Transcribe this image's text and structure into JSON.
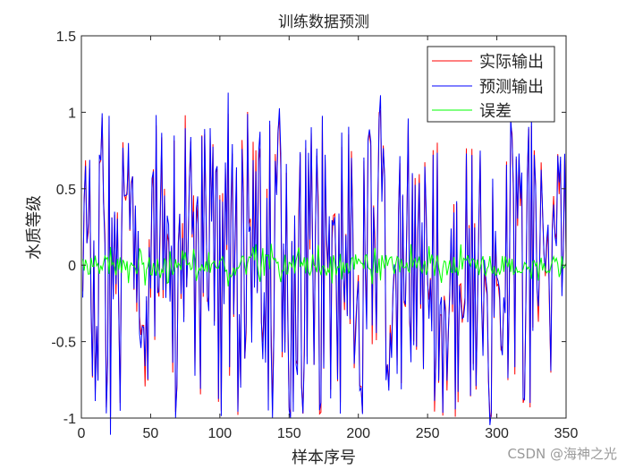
{
  "chart_data": {
    "type": "line",
    "title": "训练数据预测",
    "xlabel": "样本序号",
    "ylabel": "水质等级",
    "xlim": [
      0,
      350
    ],
    "ylim": [
      -1,
      1.5
    ],
    "xticks": [
      0,
      50,
      100,
      150,
      200,
      250,
      300,
      350
    ],
    "yticks": [
      -1,
      -0.5,
      0,
      0.5,
      1,
      1.5
    ],
    "ytick_labels": [
      "-1",
      "-0.5",
      "0",
      "0.5",
      "1",
      "1.5"
    ],
    "legend_position": "upper right",
    "grid": false,
    "series": [
      {
        "name": "实际输出",
        "color": "#ff0000",
        "description": "actual output, oscillates between about -1 and 1"
      },
      {
        "name": "预测输出",
        "color": "#0000ff",
        "description": "predicted output, closely tracks actual output"
      },
      {
        "name": "误差",
        "color": "#00ff00",
        "description": "error, small fluctuation around 0 (about ±0.1)"
      }
    ],
    "n_samples": 350,
    "seed": 7
  },
  "figure": {
    "title": "训练数据预测",
    "xlabel": "样本序号",
    "ylabel": "水质等级",
    "legend": [
      "实际输出",
      "预测输出",
      "误差"
    ],
    "watermark": "CSDN @海神之光"
  }
}
